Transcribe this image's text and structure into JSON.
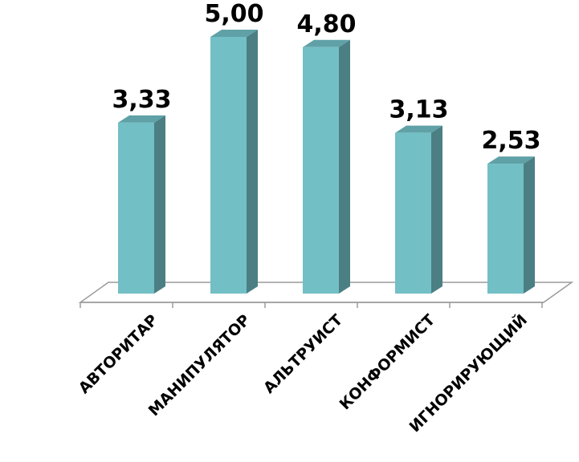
{
  "chart_data": {
    "type": "bar",
    "categories": [
      "АВТОРИТАР",
      "МАНИПУЛЯТОР",
      "АЛЬТРУИСТ",
      "КОНФОРМИСТ",
      "ИГНОРИРУЮЩИЙ"
    ],
    "values": [
      3.33,
      5.0,
      4.8,
      3.13,
      2.53
    ],
    "value_labels": [
      "3,33",
      "5,00",
      "4,80",
      "3,13",
      "2,53"
    ],
    "title": "",
    "xlabel": "",
    "ylabel": "",
    "ylim": [
      0,
      5
    ],
    "grid": false,
    "legend": "none",
    "style": "3d-column"
  },
  "colors": {
    "bar_front": "#72bfc5",
    "bar_side": "#4b7f83",
    "bar_top": "#5fa1a6",
    "floor_line": "#9a9a9a"
  }
}
